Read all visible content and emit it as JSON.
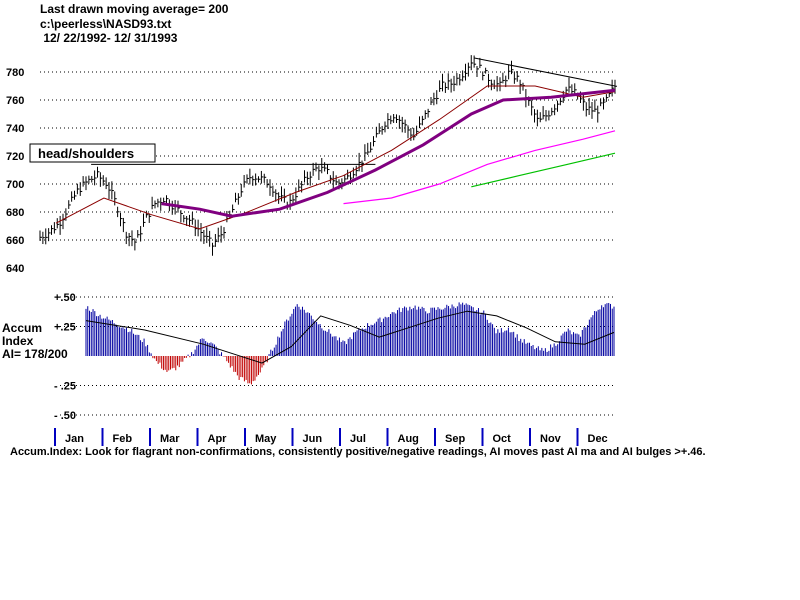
{
  "header": {
    "line1": "Last drawn moving average= 200",
    "line2": "c:\\peerless\\NASD93.txt",
    "line3": " 12/ 22/1992- 12/ 31/1993"
  },
  "side_label": {
    "line1": "Accum",
    "line2": "Index",
    "line3": "AI= 178/200"
  },
  "footer": "Accum.Index: Look for flagrant non-confirmations, consistently positive/negative readings, AI moves past AI ma and AI bulges >+.46.",
  "colors": {
    "ma_200": "#800080",
    "ma_fast": "#8b0000",
    "ma_pink": "#ff00ff",
    "ma_green": "#00c000",
    "ai_pos": "#0000a0",
    "ai_neg": "#c00000",
    "bg": "#ffffff"
  },
  "chart_data": [
    {
      "type": "line",
      "ylim": [
        640,
        790
      ],
      "y_ticks": [
        "780",
        "760",
        "740",
        "720",
        "700",
        "680",
        "660",
        "640"
      ],
      "annotation": "head/shoulders",
      "x_months": [
        "Jan",
        "Feb",
        "Mar",
        "Apr",
        "May",
        "Jun",
        "Jul",
        "Aug",
        "Sep",
        "Oct",
        "Nov",
        "Dec"
      ],
      "price_points": [
        [
          0,
          662
        ],
        [
          0.3,
          666
        ],
        [
          0.6,
          672
        ],
        [
          0.9,
          684
        ],
        [
          1.2,
          696
        ],
        [
          1.5,
          702
        ],
        [
          1.8,
          706
        ],
        [
          2.1,
          700
        ],
        [
          2.4,
          685
        ],
        [
          2.7,
          665
        ],
        [
          3.0,
          658
        ],
        [
          3.3,
          675
        ],
        [
          3.6,
          686
        ],
        [
          3.9,
          690
        ],
        [
          4.2,
          684
        ],
        [
          4.5,
          678
        ],
        [
          4.8,
          672
        ],
        [
          5.1,
          664
        ],
        [
          5.4,
          656
        ],
        [
          5.7,
          665
        ],
        [
          6.0,
          680
        ],
        [
          6.3,
          696
        ],
        [
          6.6,
          706
        ],
        [
          6.9,
          704
        ],
        [
          7.2,
          700
        ],
        [
          7.5,
          690
        ],
        [
          7.8,
          686
        ],
        [
          8.1,
          696
        ],
        [
          8.4,
          706
        ],
        [
          8.7,
          712
        ],
        [
          9.0,
          708
        ],
        [
          9.3,
          700
        ],
        [
          9.6,
          704
        ],
        [
          9.9,
          712
        ],
        [
          10.2,
          720
        ],
        [
          10.5,
          732
        ],
        [
          10.8,
          744
        ],
        [
          11.1,
          750
        ],
        [
          11.4,
          742
        ],
        [
          11.7,
          734
        ],
        [
          12.0,
          746
        ],
        [
          12.3,
          760
        ],
        [
          12.6,
          770
        ],
        [
          12.9,
          772
        ],
        [
          13.2,
          778
        ],
        [
          13.5,
          788
        ],
        [
          13.8,
          782
        ],
        [
          14.1,
          774
        ],
        [
          14.4,
          770
        ],
        [
          14.7,
          780
        ],
        [
          15.0,
          774
        ],
        [
          15.3,
          758
        ],
        [
          15.6,
          744
        ],
        [
          15.9,
          750
        ],
        [
          16.2,
          758
        ],
        [
          16.5,
          768
        ],
        [
          16.8,
          764
        ],
        [
          17.1,
          754
        ],
        [
          17.4,
          752
        ],
        [
          17.7,
          758
        ],
        [
          18.0,
          770
        ]
      ],
      "ma_200": [
        [
          3.8,
          686
        ],
        [
          5.0,
          682
        ],
        [
          6.0,
          677
        ],
        [
          7.5,
          682
        ],
        [
          9.0,
          694
        ],
        [
          10.5,
          710
        ],
        [
          12.0,
          728
        ],
        [
          13.5,
          750
        ],
        [
          14.5,
          760
        ],
        [
          16.0,
          762
        ],
        [
          18.0,
          767
        ]
      ],
      "ma_fast": [
        [
          0.5,
          672
        ],
        [
          2.0,
          690
        ],
        [
          3.5,
          678
        ],
        [
          5.0,
          668
        ],
        [
          6.5,
          680
        ],
        [
          8.0,
          694
        ],
        [
          9.5,
          706
        ],
        [
          11.0,
          724
        ],
        [
          12.5,
          746
        ],
        [
          14.0,
          770
        ],
        [
          15.5,
          770
        ],
        [
          17.0,
          762
        ],
        [
          18.0,
          766
        ]
      ],
      "ma_pink": [
        [
          9.5,
          686
        ],
        [
          11.0,
          690
        ],
        [
          12.5,
          700
        ],
        [
          14.0,
          714
        ],
        [
          15.5,
          724
        ],
        [
          17.0,
          732
        ],
        [
          18.0,
          738
        ]
      ],
      "ma_green": [
        [
          13.5,
          698
        ],
        [
          15.0,
          706
        ],
        [
          16.5,
          714
        ],
        [
          18.0,
          722
        ]
      ],
      "neckline": [
        [
          1.6,
          714
        ],
        [
          10.5,
          714
        ]
      ],
      "trendline": [
        [
          13.6,
          790
        ],
        [
          18.0,
          770
        ]
      ]
    },
    {
      "type": "bar",
      "ylim": [
        -0.55,
        0.55
      ],
      "y_ticks": [
        "+.50",
        "+.25",
        "- .25",
        "- .50"
      ],
      "ai_points": [
        [
          0,
          0.42
        ],
        [
          0.5,
          0.34
        ],
        [
          1.0,
          0.28
        ],
        [
          1.5,
          0.22
        ],
        [
          2.0,
          0.12
        ],
        [
          2.4,
          -0.05
        ],
        [
          2.8,
          -0.14
        ],
        [
          3.2,
          -0.08
        ],
        [
          3.6,
          0.02
        ],
        [
          4.0,
          0.16
        ],
        [
          4.4,
          0.08
        ],
        [
          4.8,
          -0.04
        ],
        [
          5.2,
          -0.18
        ],
        [
          5.6,
          -0.24
        ],
        [
          6.0,
          -0.12
        ],
        [
          6.4,
          0.08
        ],
        [
          6.8,
          0.28
        ],
        [
          7.2,
          0.44
        ],
        [
          7.6,
          0.36
        ],
        [
          8.0,
          0.26
        ],
        [
          8.4,
          0.18
        ],
        [
          8.8,
          0.1
        ],
        [
          9.2,
          0.2
        ],
        [
          9.6,
          0.26
        ],
        [
          10.0,
          0.3
        ],
        [
          10.4,
          0.36
        ],
        [
          10.8,
          0.4
        ],
        [
          11.2,
          0.42
        ],
        [
          11.6,
          0.38
        ],
        [
          12.0,
          0.4
        ],
        [
          12.4,
          0.42
        ],
        [
          12.8,
          0.44
        ],
        [
          13.2,
          0.4
        ],
        [
          13.6,
          0.36
        ],
        [
          14.0,
          0.2
        ],
        [
          14.4,
          0.24
        ],
        [
          14.8,
          0.14
        ],
        [
          15.2,
          0.08
        ],
        [
          15.6,
          0.04
        ],
        [
          16.0,
          0.1
        ],
        [
          16.4,
          0.22
        ],
        [
          16.8,
          0.16
        ],
        [
          17.2,
          0.32
        ],
        [
          17.6,
          0.44
        ],
        [
          18.0,
          0.42
        ]
      ],
      "ai_ma": [
        [
          0,
          0.3
        ],
        [
          2,
          0.22
        ],
        [
          4,
          0.1
        ],
        [
          6,
          -0.06
        ],
        [
          7,
          0.08
        ],
        [
          8,
          0.34
        ],
        [
          9,
          0.26
        ],
        [
          10,
          0.16
        ],
        [
          11,
          0.24
        ],
        [
          12,
          0.32
        ],
        [
          13,
          0.38
        ],
        [
          14,
          0.34
        ],
        [
          15,
          0.24
        ],
        [
          16,
          0.12
        ],
        [
          17,
          0.1
        ],
        [
          18,
          0.2
        ]
      ]
    }
  ]
}
